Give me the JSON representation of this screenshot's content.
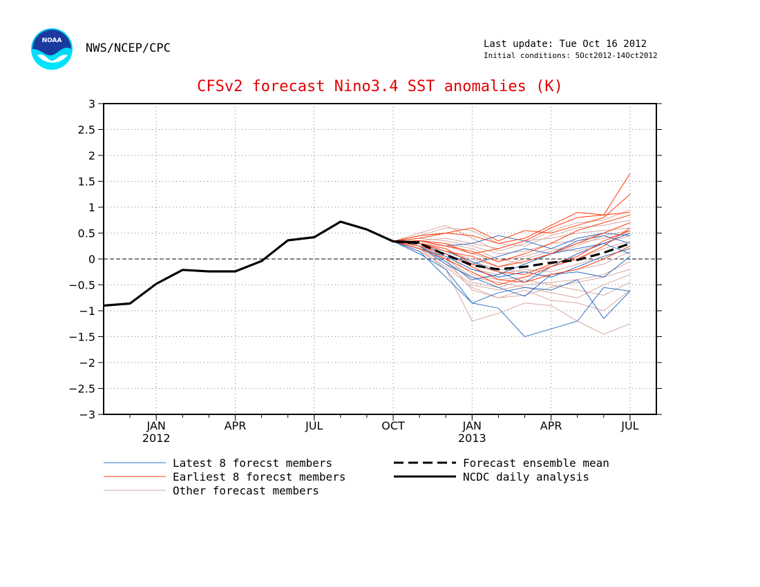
{
  "header": {
    "agency": "NWS/NCEP/CPC",
    "last_update": "Last update: Tue Oct 16 2012",
    "initial_conditions": "Initial conditions:  5Oct2012-14Oct2012",
    "logo_text": "NOAA"
  },
  "colors": {
    "title": "#e00000",
    "latest": "#2f6fc4",
    "earliest": "#ff3a0a",
    "other": "#d7a9a0",
    "mean": "#000000",
    "analysis": "#000000",
    "grid": "#777777"
  },
  "chart_data": {
    "type": "line",
    "title": "CFSv2 forecast Nino3.4 SST anomalies (K)",
    "ylim": [
      -3,
      3
    ],
    "yticks": [
      3,
      2.5,
      2,
      1.5,
      1,
      0.5,
      0,
      -0.5,
      -1,
      -1.5,
      -2,
      -2.5,
      -3
    ],
    "ytick_labels": [
      "3",
      "2.5",
      "2",
      "1.5",
      "1",
      "0.5",
      "0",
      "−0.5",
      "−1",
      "−1.5",
      "−2",
      "−2.5",
      "−3"
    ],
    "xlim": [
      "2011-11",
      "2013-08"
    ],
    "xticks": [
      {
        "date": "2012-01",
        "label": "JAN",
        "year": "2012"
      },
      {
        "date": "2012-04",
        "label": "APR",
        "year": ""
      },
      {
        "date": "2012-07",
        "label": "JUL",
        "year": ""
      },
      {
        "date": "2012-10",
        "label": "OCT",
        "year": ""
      },
      {
        "date": "2013-01",
        "label": "JAN",
        "year": "2013"
      },
      {
        "date": "2013-04",
        "label": "APR",
        "year": ""
      },
      {
        "date": "2013-07",
        "label": "JUL",
        "year": ""
      }
    ],
    "grid": true,
    "zero_line": true,
    "legend": [
      {
        "label": "Latest 8 forecst members",
        "style": "latest"
      },
      {
        "label": "Earliest 8 forecst members",
        "style": "earliest"
      },
      {
        "label": "Other forecast members",
        "style": "other"
      },
      {
        "label": "Forecast ensemble mean",
        "style": "mean"
      },
      {
        "label": "NCDC daily analysis",
        "style": "analysis"
      }
    ],
    "forecast_x": [
      "2012-10",
      "2012-11",
      "2012-12",
      "2013-01",
      "2013-02",
      "2013-03",
      "2013-04",
      "2013-05",
      "2013-06",
      "2013-07"
    ],
    "series": [
      {
        "name": "NCDC daily analysis",
        "style": "analysis",
        "x": [
          "2011-11",
          "2011-12",
          "2012-01",
          "2012-02",
          "2012-03",
          "2012-04",
          "2012-05",
          "2012-06",
          "2012-07",
          "2012-08",
          "2012-09",
          "2012-10",
          "2012-11"
        ],
        "values": [
          -0.9,
          -0.86,
          -0.48,
          -0.21,
          -0.24,
          -0.24,
          -0.04,
          0.36,
          0.42,
          0.72,
          0.57,
          0.34,
          0.32
        ]
      },
      {
        "name": "Forecast ensemble mean",
        "style": "mean",
        "x": [
          "2012-10",
          "2012-11",
          "2012-12",
          "2013-01",
          "2013-02",
          "2013-03",
          "2013-04",
          "2013-05",
          "2013-06",
          "2013-07"
        ],
        "values": [
          0.34,
          0.3,
          0.08,
          -0.12,
          -0.2,
          -0.15,
          -0.07,
          -0.02,
          0.12,
          0.3
        ]
      }
    ],
    "latest_members": [
      [
        0.34,
        0.15,
        -0.35,
        -0.85,
        -0.95,
        -1.5,
        -1.35,
        -1.2,
        -0.55,
        -0.62
      ],
      [
        0.34,
        0.1,
        -0.2,
        -0.85,
        -0.65,
        -0.55,
        -0.6,
        -0.4,
        -1.15,
        -0.62
      ],
      [
        0.34,
        0.25,
        -0.1,
        -0.35,
        -0.55,
        -0.72,
        -0.3,
        -0.25,
        -0.35,
        0.05
      ],
      [
        0.34,
        0.3,
        0.15,
        -0.05,
        -0.25,
        -0.45,
        -0.15,
        0.1,
        0.3,
        0.5
      ],
      [
        0.34,
        0.35,
        0.25,
        0.3,
        0.45,
        0.35,
        0.2,
        0.4,
        0.5,
        0.45
      ],
      [
        0.34,
        0.2,
        0.05,
        -0.2,
        -0.35,
        -0.25,
        -0.35,
        -0.15,
        0.05,
        0.2
      ],
      [
        0.34,
        0.3,
        0.1,
        -0.1,
        0.05,
        0.2,
        0.1,
        0.35,
        0.45,
        0.3
      ],
      [
        0.34,
        0.25,
        -0.05,
        -0.4,
        -0.3,
        -0.1,
        0.1,
        0.2,
        0.3,
        0.1
      ]
    ],
    "earliest_members": [
      [
        0.34,
        0.45,
        0.5,
        0.45,
        0.3,
        0.4,
        0.65,
        0.9,
        0.85,
        1.65
      ],
      [
        0.34,
        0.35,
        0.3,
        0.1,
        0.2,
        0.35,
        0.6,
        0.8,
        0.85,
        0.9
      ],
      [
        0.34,
        0.4,
        0.5,
        0.6,
        0.35,
        0.55,
        0.5,
        0.65,
        0.8,
        1.25
      ],
      [
        0.34,
        0.3,
        0.15,
        0.05,
        -0.15,
        -0.05,
        0.1,
        0.3,
        0.5,
        0.7
      ],
      [
        0.34,
        0.3,
        0.2,
        -0.1,
        -0.25,
        -0.3,
        -0.1,
        0.05,
        0.35,
        0.55
      ],
      [
        0.34,
        0.25,
        0.1,
        -0.15,
        -0.4,
        -0.45,
        -0.3,
        -0.2,
        0.0,
        0.25
      ],
      [
        0.34,
        0.35,
        0.25,
        0.15,
        -0.05,
        0.1,
        0.3,
        0.55,
        0.7,
        0.85
      ],
      [
        0.34,
        0.2,
        0.0,
        -0.25,
        -0.5,
        -0.35,
        -0.15,
        0.0,
        0.25,
        0.6
      ]
    ],
    "other_members": [
      [
        0.34,
        0.2,
        -0.2,
        -1.2,
        -1.05,
        -0.85,
        -0.9,
        -1.2,
        -1.45,
        -1.25
      ],
      [
        0.34,
        0.3,
        0.0,
        -0.6,
        -0.75,
        -0.6,
        -0.8,
        -0.85,
        -1.0,
        -0.6
      ],
      [
        0.34,
        0.25,
        0.05,
        -0.45,
        -0.55,
        -0.4,
        -0.5,
        -0.6,
        -0.7,
        -0.45
      ],
      [
        0.34,
        0.45,
        0.6,
        0.55,
        0.3,
        0.25,
        0.45,
        0.6,
        0.65,
        0.75
      ],
      [
        0.34,
        0.5,
        0.65,
        0.4,
        0.15,
        0.3,
        0.55,
        0.7,
        0.75,
        0.95
      ],
      [
        0.34,
        0.35,
        0.3,
        0.2,
        0.0,
        -0.1,
        0.1,
        0.25,
        0.45,
        0.55
      ],
      [
        0.34,
        0.3,
        0.2,
        -0.05,
        -0.2,
        -0.25,
        -0.15,
        0.0,
        0.2,
        0.35
      ],
      [
        0.34,
        0.25,
        0.1,
        -0.3,
        -0.4,
        -0.35,
        -0.3,
        -0.2,
        -0.1,
        0.15
      ],
      [
        0.34,
        0.4,
        0.35,
        0.25,
        0.1,
        0.15,
        0.3,
        0.35,
        0.5,
        0.7
      ],
      [
        0.34,
        0.2,
        -0.1,
        -0.5,
        -0.6,
        -0.5,
        -0.45,
        -0.4,
        -0.3,
        -0.05
      ],
      [
        0.34,
        0.3,
        0.15,
        0.0,
        -0.15,
        0.0,
        0.15,
        0.3,
        0.4,
        0.5
      ],
      [
        0.34,
        0.25,
        0.0,
        -0.35,
        -0.45,
        -0.55,
        -0.65,
        -0.75,
        -0.5,
        -0.3
      ],
      [
        0.34,
        0.35,
        0.4,
        0.3,
        0.2,
        0.35,
        0.4,
        0.5,
        0.55,
        0.6
      ],
      [
        0.34,
        0.15,
        -0.15,
        -0.55,
        -0.75,
        -0.7,
        -0.55,
        -0.45,
        -0.35,
        -0.2
      ],
      [
        0.34,
        0.3,
        0.25,
        0.1,
        -0.05,
        0.05,
        0.2,
        0.15,
        0.3,
        0.45
      ],
      [
        0.34,
        0.2,
        0.05,
        -0.2,
        -0.3,
        -0.2,
        -0.25,
        -0.1,
        0.05,
        0.2
      ]
    ]
  }
}
